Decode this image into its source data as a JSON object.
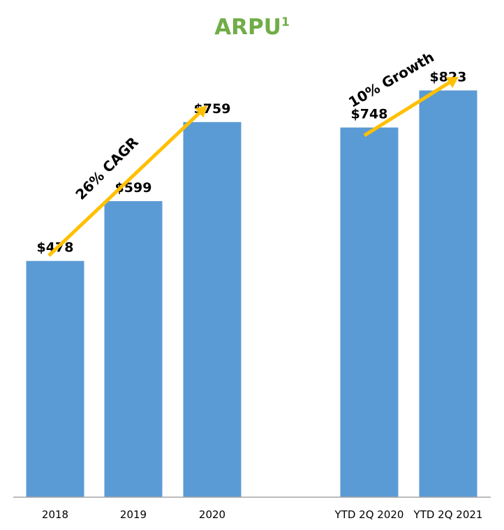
{
  "chart_data": {
    "type": "bar",
    "title": "ARPU",
    "title_superscript": "1",
    "categories": [
      "2018",
      "2019",
      "2020",
      "YTD 2Q 2020",
      "YTD 2Q 2021"
    ],
    "values": [
      478,
      599,
      759,
      748,
      823
    ],
    "value_labels": [
      "$478",
      "$599",
      "$759",
      "$748",
      "$823"
    ],
    "ylim": [
      0,
      1006
    ],
    "grid": false,
    "legend": "none",
    "annotations": [
      "26% CAGR",
      "10% Growth"
    ]
  },
  "colors": {
    "bar": "#5b9bd5",
    "title": "#70ad47",
    "arrow": "#ffc000",
    "axis": "#a6a6a6"
  }
}
